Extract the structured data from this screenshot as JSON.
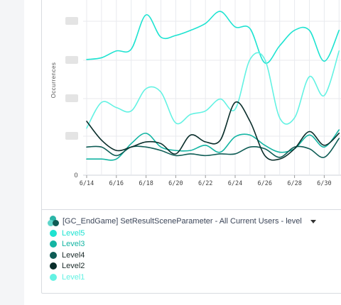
{
  "chart_data": {
    "type": "line",
    "title": "",
    "xlabel": "",
    "ylabel": "Occurrences",
    "y_tick_labels": [
      "0"
    ],
    "x": [
      "6/14",
      "6/15",
      "6/16",
      "6/17",
      "6/18",
      "6/19",
      "6/20",
      "6/21",
      "6/22",
      "6/23",
      "6/24",
      "6/25",
      "6/26",
      "6/27",
      "6/28",
      "6/29",
      "6/30",
      "7/1"
    ],
    "x_tick_labels": [
      "6/14",
      "6/16",
      "6/18",
      "6/20",
      "6/22",
      "6/24",
      "6/26",
      "6/28",
      "6/30"
    ],
    "ylim": [
      0,
      1
    ],
    "grid": true,
    "series": [
      {
        "name": "Level5",
        "color": "#1ee3d1",
        "values": [
          0.67,
          0.68,
          0.72,
          0.73,
          0.93,
          0.8,
          0.81,
          0.84,
          0.88,
          0.95,
          0.86,
          0.85,
          0.65,
          0.75,
          0.84,
          0.84,
          0.66,
          0.84
        ]
      },
      {
        "name": "Level3",
        "color": "#14b5a3",
        "values": [
          0.09,
          0.09,
          0.09,
          0.18,
          0.24,
          0.16,
          0.14,
          0.14,
          0.17,
          0.13,
          0.22,
          0.23,
          0.17,
          0.13,
          0.15,
          0.23,
          0.16,
          0.26
        ]
      },
      {
        "name": "Level4",
        "color": "#0e5c55",
        "values": [
          0.16,
          0.16,
          0.11,
          0.16,
          0.16,
          0.14,
          0.11,
          0.12,
          0.11,
          0.12,
          0.12,
          0.16,
          0.15,
          0.1,
          0.16,
          0.15,
          0.1,
          0.21
        ]
      },
      {
        "name": "Level2",
        "color": "#0a2e2b",
        "values": [
          0.31,
          0.2,
          0.14,
          0.16,
          0.19,
          0.18,
          0.12,
          0.23,
          0.19,
          0.2,
          0.42,
          0.31,
          0.11,
          0.09,
          0.15,
          0.25,
          0.17,
          0.24
        ]
      },
      {
        "name": "Level1",
        "color": "#63f2e3",
        "values": [
          0.27,
          0.42,
          0.39,
          0.37,
          0.5,
          0.48,
          0.3,
          0.35,
          0.37,
          0.44,
          0.38,
          0.67,
          0.67,
          0.33,
          0.33,
          0.57,
          0.46,
          0.72
        ]
      }
    ]
  },
  "legend": {
    "title": "[GC_EndGame] SetResultSceneParameter - All Current Users - level",
    "items": [
      {
        "label": "Level5",
        "color": "#1ee3d1",
        "text_color": "#1ee3d1"
      },
      {
        "label": "Level3",
        "color": "#14b5a3",
        "text_color": "#14b5a3"
      },
      {
        "label": "Level4",
        "color": "#0e5c55",
        "text_color": "#1c2b2a"
      },
      {
        "label": "Level2",
        "color": "#0a2e2b",
        "text_color": "#1c2b2a"
      },
      {
        "label": "Level1",
        "color": "#63f2e3",
        "text_color": "#63f2e3"
      }
    ]
  },
  "icons": {
    "legend_icon": "cluster-circles-icon",
    "dropdown": "caret-down-icon"
  }
}
